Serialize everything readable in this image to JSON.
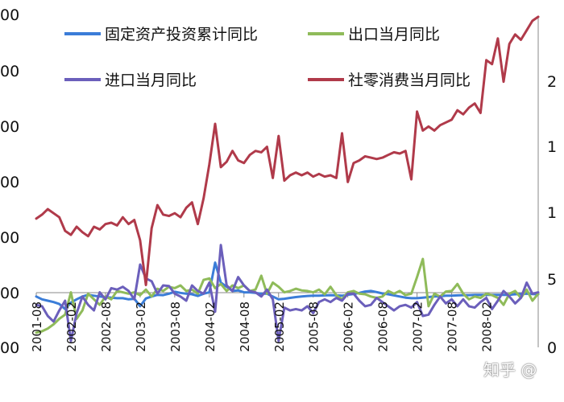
{
  "chart_data": {
    "type": "line",
    "x": [
      "2001-08",
      "2001-09",
      "2001-10",
      "2001-11",
      "2001-12",
      "2002-01",
      "2002-02",
      "2002-03",
      "2002-04",
      "2002-05",
      "2002-06",
      "2002-07",
      "2002-08",
      "2002-09",
      "2002-10",
      "2002-11",
      "2002-12",
      "2003-01",
      "2003-02",
      "2003-03",
      "2003-04",
      "2003-05",
      "2003-06",
      "2003-07",
      "2003-08",
      "2003-09",
      "2003-10",
      "2003-11",
      "2003-12",
      "2004-01",
      "2004-02",
      "2004-03",
      "2004-04",
      "2004-05",
      "2004-06",
      "2004-07",
      "2004-08",
      "2004-09",
      "2004-10",
      "2004-11",
      "2004-12",
      "2005-01",
      "2005-02",
      "2005-03",
      "2005-04",
      "2005-05",
      "2005-06",
      "2005-07",
      "2005-08",
      "2005-09",
      "2005-10",
      "2005-11",
      "2005-12",
      "2006-01",
      "2006-02",
      "2006-03",
      "2006-04",
      "2006-05",
      "2006-06",
      "2006-07",
      "2006-08",
      "2006-09",
      "2006-10",
      "2006-11",
      "2006-12",
      "2007-01",
      "2007-02",
      "2007-03",
      "2007-04",
      "2007-05",
      "2007-06",
      "2007-07",
      "2007-08",
      "2007-09",
      "2007-10",
      "2007-11",
      "2007-12",
      "2008-01",
      "2008-02",
      "2008-03",
      "2008-04",
      "2008-05",
      "2008-06",
      "2008-07",
      "2008-08",
      "2008-09",
      "2008-10",
      "2008-11"
    ],
    "x_tick_labels": [
      "2001-08",
      "2002-02",
      "2002-08",
      "2003-02",
      "2003-08",
      "2004-02",
      "2004-08",
      "2005-02",
      "2005-08",
      "2006-02",
      "2006-08",
      "2007-02",
      "2007-08",
      "2008-02"
    ],
    "y_left_tick_labels": [
      "00",
      "00",
      "00",
      "00",
      "00",
      "00",
      "00"
    ],
    "y_right_tick_labels": [
      "",
      "2",
      "1",
      "1",
      "5",
      "0"
    ],
    "legend_placement": "top",
    "grid": false,
    "series": [
      {
        "name": "固定资产投资累计同比",
        "axis": "left",
        "color": "#3b7dd8",
        "values": [
          190,
          180,
          175,
          170,
          163,
          145,
          168,
          180,
          190,
          196,
          193,
          190,
          188,
          186,
          184,
          184,
          180,
          182,
          155,
          183,
          190,
          196,
          195,
          200,
          207,
          203,
          200,
          198,
          192,
          200,
          205,
          312,
          240,
          225,
          210,
          212,
          205,
          205,
          203,
          200,
          200,
          190,
          180,
          182,
          185,
          188,
          190,
          192,
          193,
          193,
          194,
          195,
          194,
          193,
          196,
          199,
          203,
          208,
          210,
          206,
          201,
          198,
          194,
          190,
          186,
          184,
          184,
          186,
          188,
          190,
          191,
          193,
          193,
          194,
          195,
          195,
          196,
          196,
          196,
          196,
          196,
          196,
          196,
          198,
          199,
          200,
          199,
          198
        ]
      },
      {
        "name": "出口当月同比",
        "axis": "left",
        "color": "#8fbb5a",
        "values": [
          60,
          65,
          75,
          90,
          110,
          125,
          205,
          110,
          140,
          200,
          180,
          160,
          190,
          180,
          210,
          205,
          200,
          205,
          195,
          215,
          190,
          218,
          210,
          225,
          220,
          230,
          210,
          215,
          200,
          250,
          255,
          220,
          235,
          210,
          230,
          220,
          230,
          210,
          215,
          265,
          200,
          240,
          225,
          205,
          210,
          218,
          212,
          210,
          205,
          215,
          198,
          225,
          195,
          180,
          205,
          210,
          200,
          198,
          190,
          185,
          190,
          210,
          200,
          210,
          195,
          200,
          260,
          325,
          155,
          200,
          190,
          208,
          210,
          235,
          200,
          180,
          190,
          185,
          200,
          195,
          185,
          160,
          200,
          210,
          185,
          215,
          175,
          200
        ]
      },
      {
        "name": "进口当月同比",
        "axis": "left",
        "color": "#6b5fbb",
        "values": [
          160,
          155,
          120,
          100,
          140,
          175,
          30,
          130,
          190,
          160,
          140,
          205,
          180,
          220,
          215,
          225,
          210,
          180,
          305,
          255,
          245,
          200,
          230,
          228,
          200,
          190,
          175,
          230,
          210,
          200,
          240,
          135,
          375,
          230,
          210,
          260,
          230,
          210,
          205,
          190,
          215,
          180,
          30,
          150,
          140,
          145,
          140,
          155,
          130,
          170,
          180,
          170,
          185,
          175,
          200,
          200,
          175,
          155,
          160,
          185,
          170,
          155,
          140,
          155,
          160,
          150,
          170,
          120,
          125,
          160,
          190,
          165,
          180,
          155,
          180,
          155,
          150,
          170,
          185,
          145,
          175,
          210,
          190,
          165,
          185,
          240,
          200,
          205
        ]
      },
      {
        "name": "社零消费当月同比",
        "axis": "right",
        "color": "#b03a4a",
        "values": [
          9.5,
          9.8,
          10.2,
          9.9,
          9.6,
          8.6,
          8.3,
          8.9,
          8.5,
          8.2,
          8.9,
          8.7,
          9.1,
          9.2,
          9.0,
          9.6,
          9.1,
          9.4,
          7.9,
          4.6,
          8.8,
          10.5,
          9.8,
          9.7,
          9.9,
          9.6,
          10.3,
          10.7,
          9.1,
          11.0,
          13.5,
          16.5,
          13.3,
          13.7,
          14.5,
          13.8,
          13.6,
          14.2,
          14.5,
          14.4,
          14.8,
          12.5,
          15.6,
          12.3,
          12.7,
          12.9,
          12.7,
          12.9,
          12.6,
          12.8,
          12.6,
          12.7,
          12.5,
          15.8,
          12.2,
          13.6,
          13.8,
          14.1,
          14.0,
          13.9,
          14.0,
          14.2,
          14.4,
          14.3,
          14.5,
          12.4,
          17.4,
          16.0,
          16.3,
          16.0,
          16.4,
          16.6,
          16.8,
          17.5,
          17.2,
          17.7,
          18.0,
          17.3,
          21.2,
          20.9,
          22.8,
          19.6,
          22.4,
          23.1,
          22.7,
          23.4,
          24.1,
          24.4
        ]
      }
    ]
  },
  "watermark": "知乎 @"
}
